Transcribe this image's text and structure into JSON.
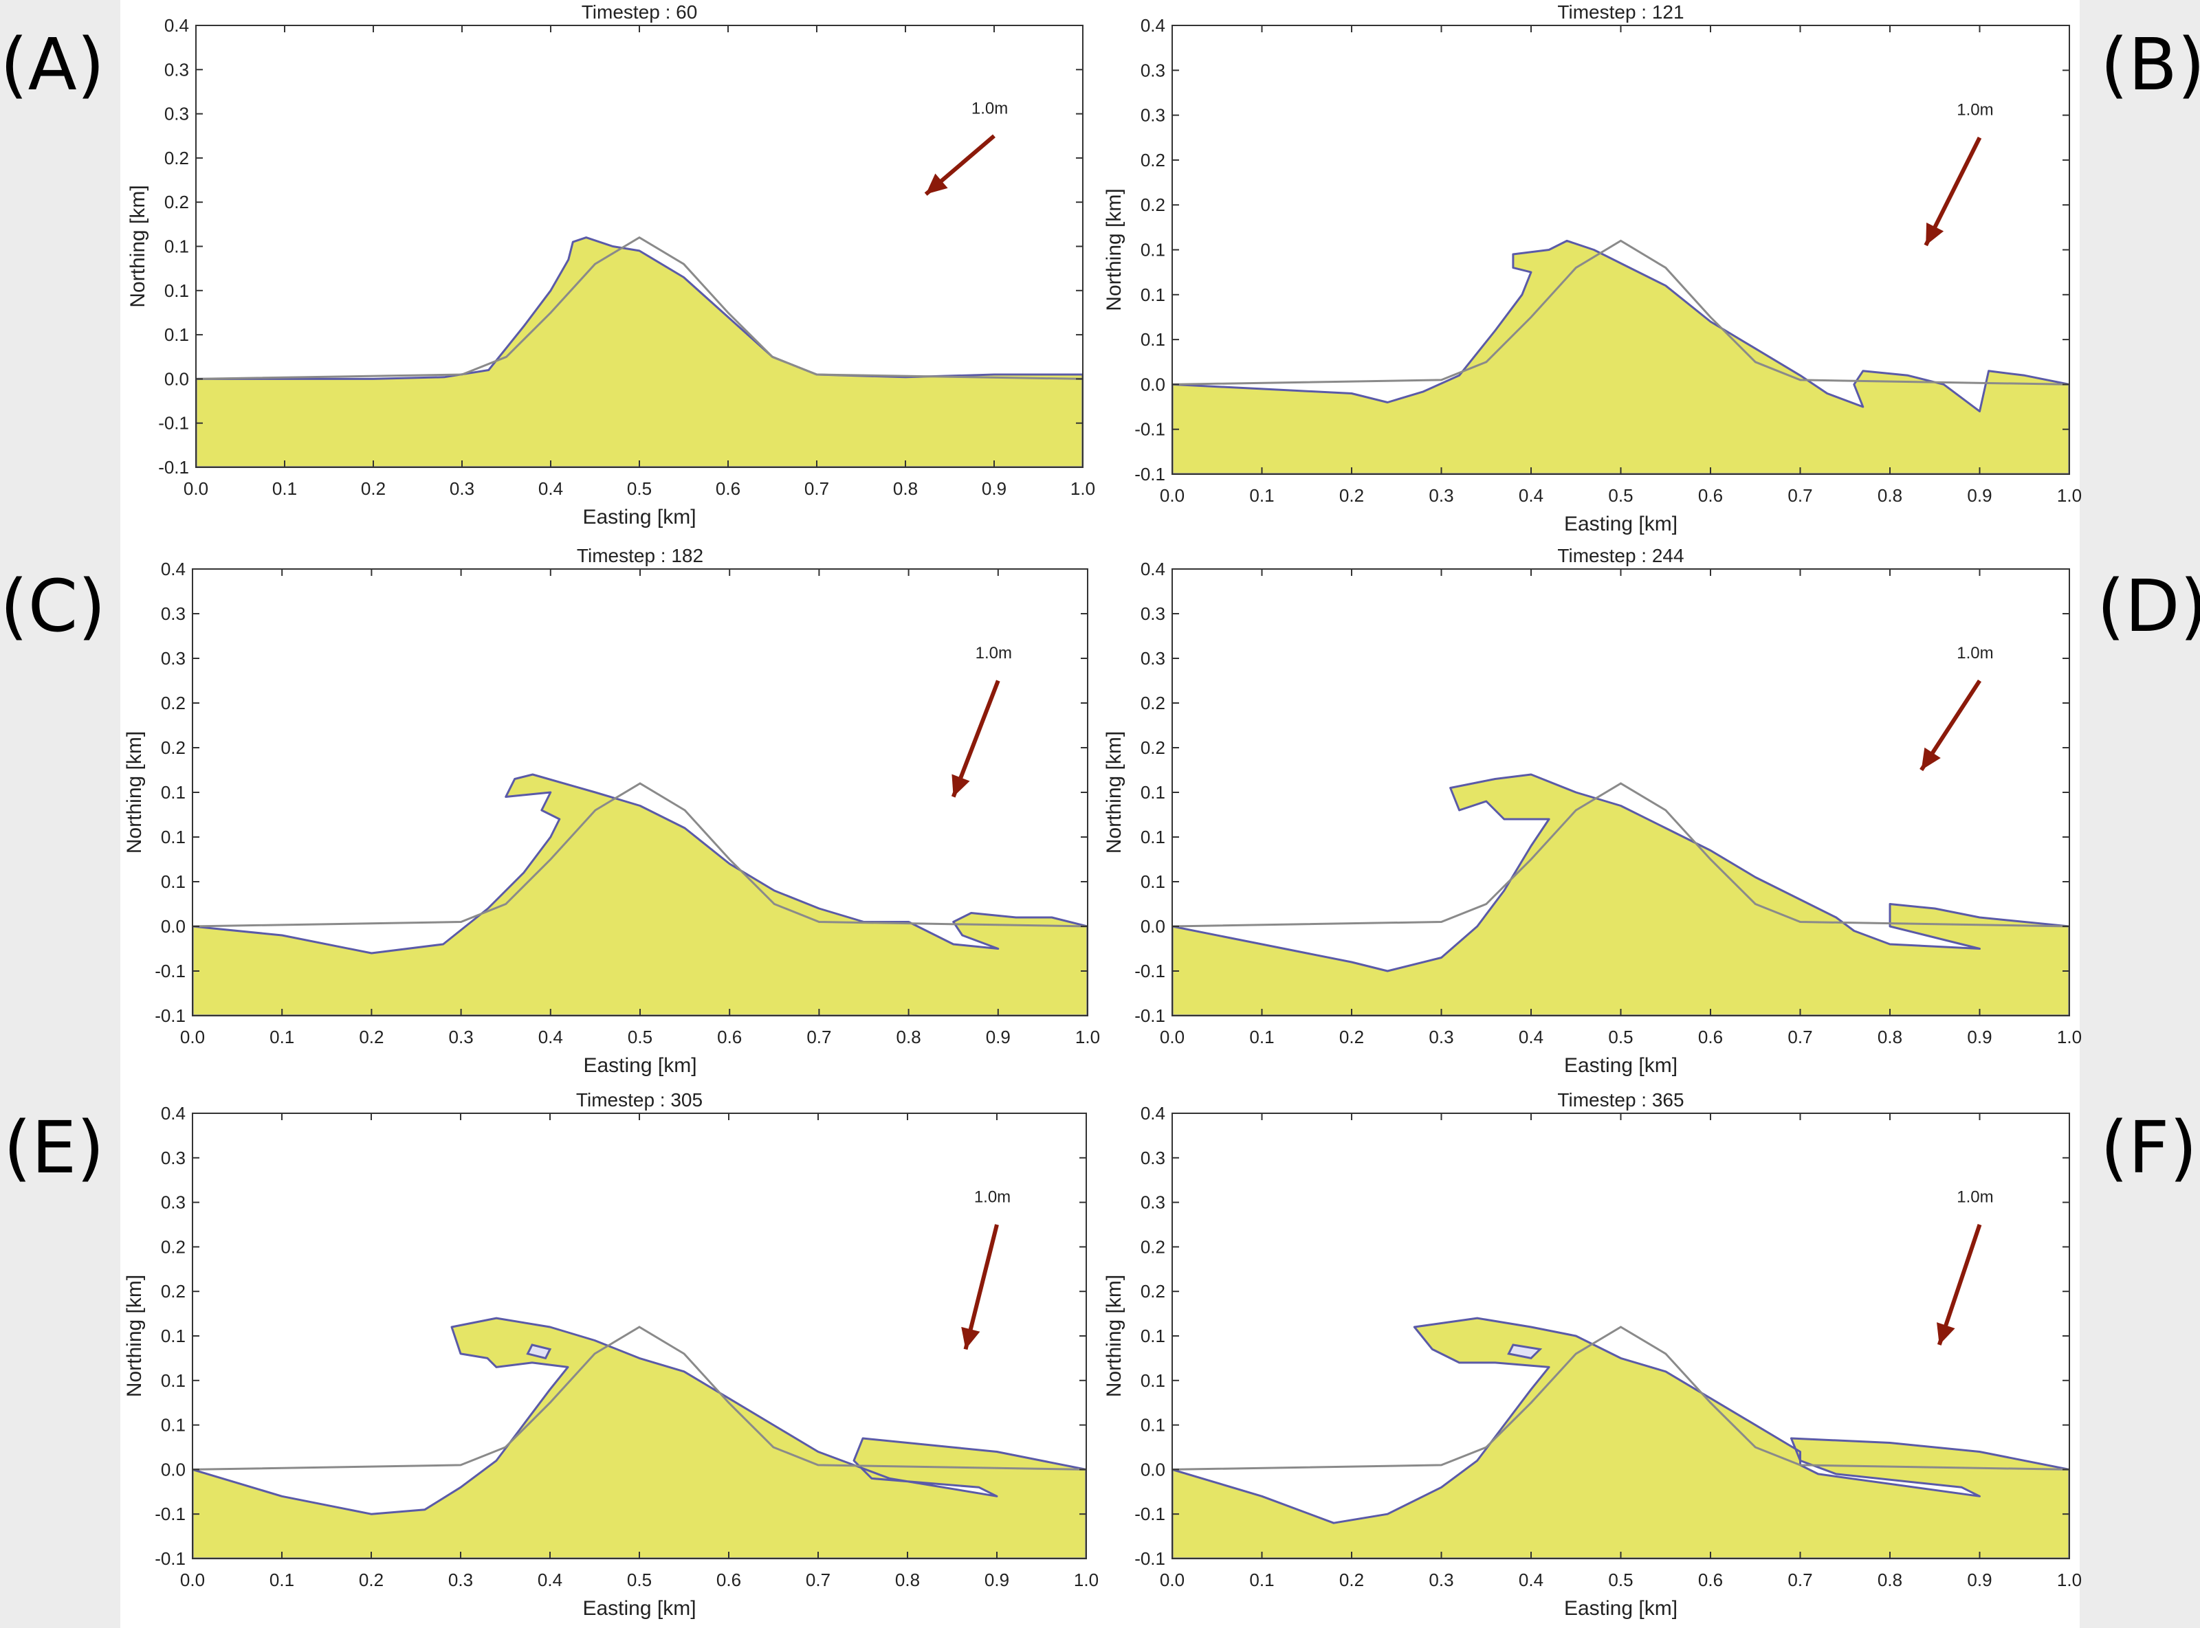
{
  "colors": {
    "water": "#e5e566",
    "outline": "#5a5aa8",
    "initial": "#8a8a8a",
    "arrow": "#8b1a0a",
    "hole": "#e2e2f6"
  },
  "chart_data": [
    {
      "label": "(A)",
      "type": "area",
      "title": "Timestep : 60",
      "xlabel": "Easting [km]",
      "ylabel": "Northing [km]",
      "xlim": [
        0,
        1.0
      ],
      "ylim": [
        -0.1,
        0.4
      ],
      "xticks": [
        "0.0",
        "0.1",
        "0.2",
        "0.3",
        "0.4",
        "0.5",
        "0.6",
        "0.7",
        "0.8",
        "0.9",
        "1.0"
      ],
      "yticks": [
        "-0.1",
        "-0.1",
        "0.0",
        "0.1",
        "0.1",
        "0.1",
        "0.2",
        "0.2",
        "0.3",
        "0.3",
        "0.4"
      ],
      "arrow_label": "1.0m",
      "arrow_vector": [
        -0.077,
        -0.066
      ],
      "initial_surface": [
        [
          0,
          0
        ],
        [
          0.3,
          0.005
        ],
        [
          0.35,
          0.025
        ],
        [
          0.4,
          0.075
        ],
        [
          0.45,
          0.13
        ],
        [
          0.5,
          0.16
        ],
        [
          0.55,
          0.13
        ],
        [
          0.6,
          0.075
        ],
        [
          0.65,
          0.025
        ],
        [
          0.7,
          0.005
        ],
        [
          1,
          0
        ]
      ],
      "water_outline": [
        [
          0,
          0
        ],
        [
          0.1,
          0
        ],
        [
          0.2,
          0
        ],
        [
          0.28,
          0.002
        ],
        [
          0.33,
          0.01
        ],
        [
          0.37,
          0.06
        ],
        [
          0.4,
          0.1
        ],
        [
          0.42,
          0.135
        ],
        [
          0.425,
          0.155
        ],
        [
          0.44,
          0.16
        ],
        [
          0.47,
          0.15
        ],
        [
          0.5,
          0.145
        ],
        [
          0.55,
          0.115
        ],
        [
          0.6,
          0.07
        ],
        [
          0.65,
          0.025
        ],
        [
          0.7,
          0.005
        ],
        [
          0.8,
          0.002
        ],
        [
          0.9,
          0.005
        ],
        [
          1,
          0.005
        ],
        [
          1,
          -0.1
        ],
        [
          0,
          -0.1
        ]
      ],
      "holes": []
    },
    {
      "label": "(B)",
      "type": "area",
      "title": "Timestep : 121",
      "xlabel": "Easting [km]",
      "ylabel": "Northing [km]",
      "xlim": [
        0,
        1.0
      ],
      "ylim": [
        -0.1,
        0.4
      ],
      "xticks": [
        "0.0",
        "0.1",
        "0.2",
        "0.3",
        "0.4",
        "0.5",
        "0.6",
        "0.7",
        "0.8",
        "0.9",
        "1.0"
      ],
      "yticks": [
        "-0.1",
        "-0.1",
        "0.0",
        "0.1",
        "0.1",
        "0.1",
        "0.2",
        "0.2",
        "0.3",
        "0.3",
        "0.4"
      ],
      "arrow_label": "1.0m",
      "arrow_vector": [
        -0.06,
        -0.12
      ],
      "initial_surface": [
        [
          0,
          0
        ],
        [
          0.3,
          0.005
        ],
        [
          0.35,
          0.025
        ],
        [
          0.4,
          0.075
        ],
        [
          0.45,
          0.13
        ],
        [
          0.5,
          0.16
        ],
        [
          0.55,
          0.13
        ],
        [
          0.6,
          0.075
        ],
        [
          0.65,
          0.025
        ],
        [
          0.7,
          0.005
        ],
        [
          1,
          0
        ]
      ],
      "water_outline": [
        [
          0,
          0
        ],
        [
          0.1,
          -0.005
        ],
        [
          0.2,
          -0.01
        ],
        [
          0.24,
          -0.02
        ],
        [
          0.28,
          -0.008
        ],
        [
          0.32,
          0.01
        ],
        [
          0.36,
          0.06
        ],
        [
          0.39,
          0.1
        ],
        [
          0.4,
          0.125
        ],
        [
          0.38,
          0.13
        ],
        [
          0.38,
          0.145
        ],
        [
          0.42,
          0.15
        ],
        [
          0.44,
          0.16
        ],
        [
          0.47,
          0.15
        ],
        [
          0.5,
          0.135
        ],
        [
          0.55,
          0.11
        ],
        [
          0.6,
          0.07
        ],
        [
          0.65,
          0.04
        ],
        [
          0.7,
          0.01
        ],
        [
          0.73,
          -0.01
        ],
        [
          0.77,
          -0.025
        ],
        [
          0.76,
          0
        ],
        [
          0.77,
          0.015
        ],
        [
          0.82,
          0.01
        ],
        [
          0.86,
          0
        ],
        [
          0.9,
          -0.03
        ],
        [
          0.91,
          0.015
        ],
        [
          0.95,
          0.01
        ],
        [
          1,
          0
        ],
        [
          1,
          -0.1
        ],
        [
          0,
          -0.1
        ]
      ],
      "holes": []
    },
    {
      "label": "(C)",
      "type": "area",
      "title": "Timestep : 182",
      "xlabel": "Easting [km]",
      "ylabel": "Northing [km]",
      "xlim": [
        0,
        1.0
      ],
      "ylim": [
        -0.1,
        0.4
      ],
      "xticks": [
        "0.0",
        "0.1",
        "0.2",
        "0.3",
        "0.4",
        "0.5",
        "0.6",
        "0.7",
        "0.8",
        "0.9",
        "1.0"
      ],
      "yticks": [
        "-0.1",
        "-0.1",
        "0.0",
        "0.1",
        "0.1",
        "0.1",
        "0.2",
        "0.2",
        "0.3",
        "0.3",
        "0.4"
      ],
      "arrow_label": "1.0m",
      "arrow_vector": [
        -0.05,
        -0.13
      ],
      "initial_surface": [
        [
          0,
          0
        ],
        [
          0.3,
          0.005
        ],
        [
          0.35,
          0.025
        ],
        [
          0.4,
          0.075
        ],
        [
          0.45,
          0.13
        ],
        [
          0.5,
          0.16
        ],
        [
          0.55,
          0.13
        ],
        [
          0.6,
          0.075
        ],
        [
          0.65,
          0.025
        ],
        [
          0.7,
          0.005
        ],
        [
          1,
          0
        ]
      ],
      "water_outline": [
        [
          0,
          0
        ],
        [
          0.1,
          -0.01
        ],
        [
          0.2,
          -0.03
        ],
        [
          0.28,
          -0.02
        ],
        [
          0.33,
          0.02
        ],
        [
          0.37,
          0.06
        ],
        [
          0.4,
          0.1
        ],
        [
          0.41,
          0.12
        ],
        [
          0.39,
          0.13
        ],
        [
          0.4,
          0.15
        ],
        [
          0.35,
          0.145
        ],
        [
          0.36,
          0.165
        ],
        [
          0.38,
          0.17
        ],
        [
          0.45,
          0.15
        ],
        [
          0.5,
          0.135
        ],
        [
          0.55,
          0.11
        ],
        [
          0.6,
          0.07
        ],
        [
          0.65,
          0.04
        ],
        [
          0.7,
          0.02
        ],
        [
          0.75,
          0.005
        ],
        [
          0.8,
          0.005
        ],
        [
          0.85,
          -0.02
        ],
        [
          0.9,
          -0.025
        ],
        [
          0.86,
          -0.01
        ],
        [
          0.85,
          0.005
        ],
        [
          0.87,
          0.015
        ],
        [
          0.92,
          0.01
        ],
        [
          0.96,
          0.01
        ],
        [
          1,
          0
        ],
        [
          1,
          -0.1
        ],
        [
          0,
          -0.1
        ]
      ],
      "holes": []
    },
    {
      "label": "(D)",
      "type": "area",
      "title": "Timestep : 244",
      "xlabel": "Easting [km]",
      "ylabel": "Northing [km]",
      "xlim": [
        0,
        1.0
      ],
      "ylim": [
        -0.1,
        0.4
      ],
      "xticks": [
        "0.0",
        "0.1",
        "0.2",
        "0.3",
        "0.4",
        "0.5",
        "0.6",
        "0.7",
        "0.8",
        "0.9",
        "1.0"
      ],
      "yticks": [
        "-0.1",
        "-0.1",
        "0.0",
        "0.1",
        "0.1",
        "0.1",
        "0.2",
        "0.2",
        "0.3",
        "0.3",
        "0.4"
      ],
      "arrow_label": "1.0m",
      "arrow_vector": [
        -0.065,
        -0.1
      ],
      "initial_surface": [
        [
          0,
          0
        ],
        [
          0.3,
          0.005
        ],
        [
          0.35,
          0.025
        ],
        [
          0.4,
          0.075
        ],
        [
          0.45,
          0.13
        ],
        [
          0.5,
          0.16
        ],
        [
          0.55,
          0.13
        ],
        [
          0.6,
          0.075
        ],
        [
          0.65,
          0.025
        ],
        [
          0.7,
          0.005
        ],
        [
          1,
          0
        ]
      ],
      "water_outline": [
        [
          0,
          0
        ],
        [
          0.1,
          -0.02
        ],
        [
          0.2,
          -0.04
        ],
        [
          0.24,
          -0.05
        ],
        [
          0.3,
          -0.035
        ],
        [
          0.34,
          0
        ],
        [
          0.37,
          0.04
        ],
        [
          0.4,
          0.09
        ],
        [
          0.42,
          0.12
        ],
        [
          0.4,
          0.12
        ],
        [
          0.37,
          0.12
        ],
        [
          0.35,
          0.14
        ],
        [
          0.32,
          0.13
        ],
        [
          0.31,
          0.155
        ],
        [
          0.36,
          0.165
        ],
        [
          0.4,
          0.17
        ],
        [
          0.45,
          0.15
        ],
        [
          0.5,
          0.135
        ],
        [
          0.55,
          0.11
        ],
        [
          0.6,
          0.085
        ],
        [
          0.65,
          0.055
        ],
        [
          0.7,
          0.03
        ],
        [
          0.74,
          0.01
        ],
        [
          0.76,
          -0.005
        ],
        [
          0.8,
          -0.02
        ],
        [
          0.9,
          -0.025
        ],
        [
          0.84,
          -0.01
        ],
        [
          0.8,
          0
        ],
        [
          0.8,
          0.025
        ],
        [
          0.85,
          0.02
        ],
        [
          0.9,
          0.01
        ],
        [
          1,
          0
        ],
        [
          1,
          -0.1
        ],
        [
          0,
          -0.1
        ]
      ],
      "holes": []
    },
    {
      "label": "(E)",
      "type": "area",
      "title": "Timestep : 305",
      "xlabel": "Easting [km]",
      "ylabel": "Northing [km]",
      "xlim": [
        0,
        1.0
      ],
      "ylim": [
        -0.1,
        0.4
      ],
      "xticks": [
        "0.0",
        "0.1",
        "0.2",
        "0.3",
        "0.4",
        "0.5",
        "0.6",
        "0.7",
        "0.8",
        "0.9",
        "1.0"
      ],
      "yticks": [
        "-0.1",
        "-0.1",
        "0.0",
        "0.1",
        "0.1",
        "0.1",
        "0.2",
        "0.2",
        "0.3",
        "0.3",
        "0.4"
      ],
      "arrow_label": "1.0m",
      "arrow_vector": [
        -0.035,
        -0.14
      ],
      "initial_surface": [
        [
          0,
          0
        ],
        [
          0.3,
          0.005
        ],
        [
          0.35,
          0.025
        ],
        [
          0.4,
          0.075
        ],
        [
          0.45,
          0.13
        ],
        [
          0.5,
          0.16
        ],
        [
          0.55,
          0.13
        ],
        [
          0.6,
          0.075
        ],
        [
          0.65,
          0.025
        ],
        [
          0.7,
          0.005
        ],
        [
          1,
          0
        ]
      ],
      "water_outline": [
        [
          0,
          0
        ],
        [
          0.1,
          -0.03
        ],
        [
          0.2,
          -0.05
        ],
        [
          0.26,
          -0.045
        ],
        [
          0.3,
          -0.02
        ],
        [
          0.34,
          0.01
        ],
        [
          0.37,
          0.05
        ],
        [
          0.4,
          0.09
        ],
        [
          0.42,
          0.115
        ],
        [
          0.38,
          0.12
        ],
        [
          0.34,
          0.115
        ],
        [
          0.33,
          0.125
        ],
        [
          0.3,
          0.13
        ],
        [
          0.29,
          0.16
        ],
        [
          0.34,
          0.17
        ],
        [
          0.4,
          0.16
        ],
        [
          0.45,
          0.145
        ],
        [
          0.5,
          0.125
        ],
        [
          0.55,
          0.11
        ],
        [
          0.6,
          0.08
        ],
        [
          0.65,
          0.05
        ],
        [
          0.7,
          0.02
        ],
        [
          0.74,
          0.005
        ],
        [
          0.78,
          -0.01
        ],
        [
          0.9,
          -0.03
        ],
        [
          0.88,
          -0.02
        ],
        [
          0.76,
          -0.01
        ],
        [
          0.74,
          0.01
        ],
        [
          0.75,
          0.035
        ],
        [
          0.85,
          0.025
        ],
        [
          0.9,
          0.02
        ],
        [
          1,
          0
        ],
        [
          1,
          -0.1
        ],
        [
          0,
          -0.1
        ]
      ],
      "holes": [
        [
          [
            0.38,
            0.14
          ],
          [
            0.4,
            0.135
          ],
          [
            0.395,
            0.125
          ],
          [
            0.375,
            0.13
          ]
        ]
      ]
    },
    {
      "label": "(F)",
      "type": "area",
      "title": "Timestep : 365",
      "xlabel": "Easting [km]",
      "ylabel": "Northing [km]",
      "xlim": [
        0,
        1.0
      ],
      "ylim": [
        -0.1,
        0.4
      ],
      "xticks": [
        "0.0",
        "0.1",
        "0.2",
        "0.3",
        "0.4",
        "0.5",
        "0.6",
        "0.7",
        "0.8",
        "0.9",
        "1.0"
      ],
      "yticks": [
        "-0.1",
        "-0.1",
        "0.0",
        "0.1",
        "0.1",
        "0.1",
        "0.2",
        "0.2",
        "0.3",
        "0.3",
        "0.4"
      ],
      "arrow_label": "1.0m",
      "arrow_vector": [
        -0.045,
        -0.135
      ],
      "initial_surface": [
        [
          0,
          0
        ],
        [
          0.3,
          0.005
        ],
        [
          0.35,
          0.025
        ],
        [
          0.4,
          0.075
        ],
        [
          0.45,
          0.13
        ],
        [
          0.5,
          0.16
        ],
        [
          0.55,
          0.13
        ],
        [
          0.6,
          0.075
        ],
        [
          0.65,
          0.025
        ],
        [
          0.7,
          0.005
        ],
        [
          1,
          0
        ]
      ],
      "water_outline": [
        [
          0,
          0
        ],
        [
          0.1,
          -0.03
        ],
        [
          0.18,
          -0.06
        ],
        [
          0.24,
          -0.05
        ],
        [
          0.3,
          -0.02
        ],
        [
          0.34,
          0.01
        ],
        [
          0.37,
          0.05
        ],
        [
          0.4,
          0.09
        ],
        [
          0.42,
          0.115
        ],
        [
          0.36,
          0.12
        ],
        [
          0.32,
          0.12
        ],
        [
          0.29,
          0.135
        ],
        [
          0.27,
          0.16
        ],
        [
          0.34,
          0.17
        ],
        [
          0.4,
          0.16
        ],
        [
          0.45,
          0.15
        ],
        [
          0.5,
          0.125
        ],
        [
          0.55,
          0.11
        ],
        [
          0.6,
          0.08
        ],
        [
          0.65,
          0.05
        ],
        [
          0.7,
          0.02
        ],
        [
          0.7,
          0.005
        ],
        [
          0.72,
          -0.005
        ],
        [
          0.9,
          -0.03
        ],
        [
          0.88,
          -0.02
        ],
        [
          0.74,
          -0.005
        ],
        [
          0.7,
          0.01
        ],
        [
          0.69,
          0.035
        ],
        [
          0.8,
          0.03
        ],
        [
          0.9,
          0.02
        ],
        [
          1,
          0
        ],
        [
          1,
          -0.1
        ],
        [
          0,
          -0.1
        ]
      ],
      "holes": [
        [
          [
            0.38,
            0.14
          ],
          [
            0.41,
            0.135
          ],
          [
            0.4,
            0.125
          ],
          [
            0.375,
            0.13
          ]
        ]
      ]
    }
  ]
}
